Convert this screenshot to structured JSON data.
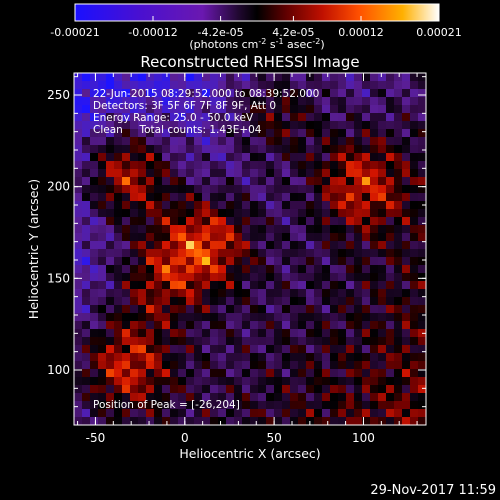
{
  "chart_data": {
    "type": "heatmap",
    "title": "Reconstructed RHESSI Image",
    "xlabel": "Heliocentric X (arcsec)",
    "ylabel": "Heliocentric Y (arcsec)",
    "xlim": [
      -62,
      135
    ],
    "ylim": [
      70,
      262
    ],
    "x_ticks": [
      -50,
      0,
      50,
      100
    ],
    "x_tick_labels": [
      "-50",
      "0",
      "50",
      "100"
    ],
    "y_ticks": [
      100,
      150,
      200,
      250
    ],
    "y_tick_labels": [
      "100",
      "150",
      "200",
      "250"
    ],
    "colorbar": {
      "range": [
        -0.00021,
        0.00021
      ],
      "tick_values": [
        -0.00021,
        -0.00012,
        -4.2e-05,
        4.2e-05,
        0.00012,
        0.00021
      ],
      "tick_labels": [
        "-0.00021",
        "-0.00012",
        "-4.2e-05",
        "4.2e-05",
        "0.00012",
        "0.00021"
      ],
      "units_label": "(photons cm",
      "units_exp1": "-2",
      "units_mid": " s",
      "units_exp2": "-1",
      "units_mid2": " asec",
      "units_exp3": "-2",
      "units_end": ")"
    },
    "annotations": [
      "22-Jun-2015 08:29:52.000 to 08:39:52.000",
      "Detectors: 3F 5F 6F 7F 8F 9F, Att 0",
      "Energy Range: 25.0 - 50.0 keV",
      "Clean     Total counts: 1.43E+04"
    ],
    "peak_label": "Position of Peak = [-26,204]",
    "peak_position": [
      -26,
      204
    ],
    "bright_sources": [
      {
        "x": -33,
        "y": 207,
        "level": 1.0
      },
      {
        "x": 12,
        "y": 170,
        "level": 0.85
      },
      {
        "x": -33,
        "y": 103,
        "level": 0.8
      },
      {
        "x": -15,
        "y": 150,
        "level": 0.6
      },
      {
        "x": 98,
        "y": 202,
        "level": 0.7
      },
      {
        "x": 50,
        "y": 240,
        "level": 0.55
      }
    ],
    "colors": {
      "negative": "#1a10c8",
      "zero": "#000000",
      "positive": "#ffffff"
    }
  },
  "footer": {
    "timestamp": "29-Nov-2017 11:59"
  }
}
